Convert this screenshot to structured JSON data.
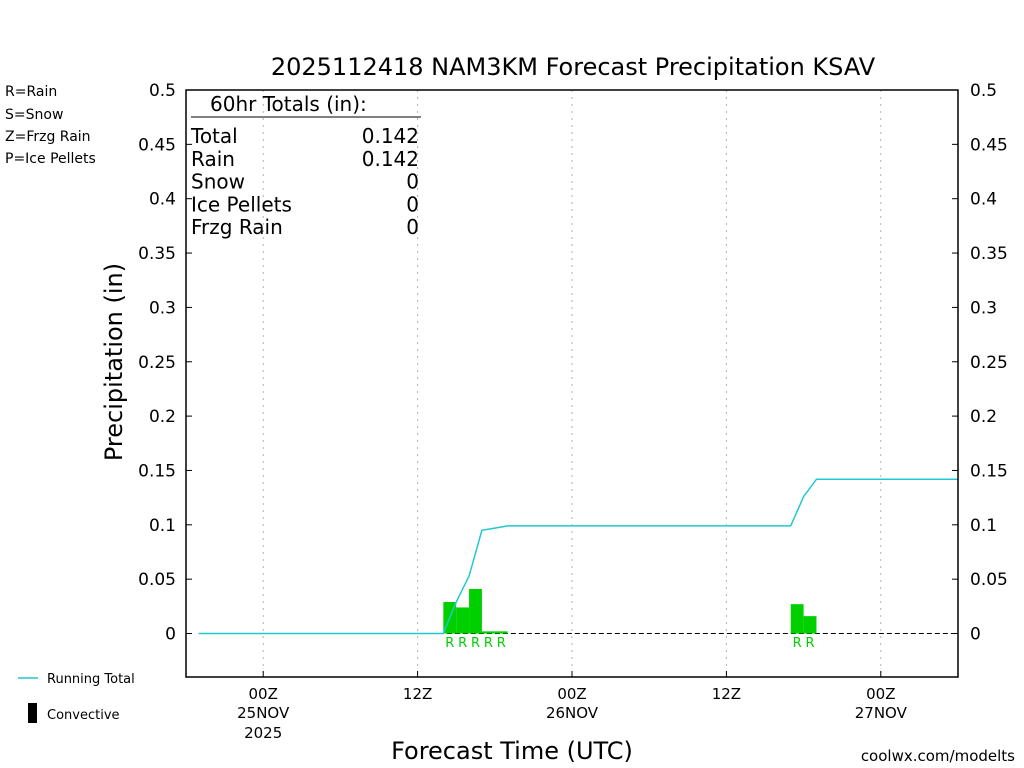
{
  "colors": {
    "rain": "#00d000",
    "snow": "#3d5ce6",
    "frzg_rain": "#f08030",
    "ice_pellets": "#e0208c",
    "running_total": "#20c8d2",
    "convective": "#000000",
    "credit": "#e01818"
  },
  "type_legend": [
    {
      "label": "R=Rain",
      "color_key": "rain"
    },
    {
      "label": "S=Snow",
      "color_key": "snow"
    },
    {
      "label": "Z=Frzg Rain",
      "color_key": "frzg_rain"
    },
    {
      "label": "P=Ice Pellets",
      "color_key": "ice_pellets"
    }
  ],
  "bottom_legend": {
    "running_total": "Running Total",
    "convective": "Convective"
  },
  "totals_box": {
    "header": "60hr Totals (in):",
    "rows": [
      {
        "label": "Total",
        "value": "0.142"
      },
      {
        "label": "Rain",
        "value": "0.142"
      },
      {
        "label": "Snow",
        "value": "0"
      },
      {
        "label": "Ice Pellets",
        "value": "0"
      },
      {
        "label": "Frzg Rain",
        "value": "0"
      }
    ]
  },
  "credit": "coolwx.com/modelts",
  "chart_data": {
    "type": "bar",
    "title": "2025112418 NAM3KM Forecast Precipitation KSAV",
    "xlabel": "Forecast Time (UTC)",
    "ylabel": "Precipitation (in)",
    "ylim": [
      -0.04,
      0.5
    ],
    "yticks": [
      0,
      0.05,
      0.1,
      0.15,
      0.2,
      0.25,
      0.3,
      0.35,
      0.4,
      0.45,
      0.5
    ],
    "ytick_labels": [
      "0",
      "0.05",
      "0.1",
      "0.15",
      "0.2",
      "0.25",
      "0.3",
      "0.35",
      "0.4",
      "0.45",
      "0.5"
    ],
    "xlim": [
      "2025-11-24T18Z",
      "2025-11-27T06Z"
    ],
    "grid_x": true,
    "grid_y": false,
    "xticks": [
      {
        "time": "2025-11-25T00Z",
        "label": "00Z",
        "date": "25NOV",
        "year": "2025"
      },
      {
        "time": "2025-11-25T12Z",
        "label": "12Z",
        "date": "",
        "year": ""
      },
      {
        "time": "2025-11-26T00Z",
        "label": "00Z",
        "date": "26NOV",
        "year": ""
      },
      {
        "time": "2025-11-26T12Z",
        "label": "12Z",
        "date": "",
        "year": ""
      },
      {
        "time": "2025-11-27T00Z",
        "label": "00Z",
        "date": "27NOV",
        "year": ""
      }
    ],
    "bars": [
      {
        "time": "2025-11-25T15Z",
        "value": 0.029,
        "type": "R"
      },
      {
        "time": "2025-11-25T16Z",
        "value": 0.024,
        "type": "R"
      },
      {
        "time": "2025-11-25T17Z",
        "value": 0.041,
        "type": "R"
      },
      {
        "time": "2025-11-25T18Z",
        "value": 0.002,
        "type": "R"
      },
      {
        "time": "2025-11-25T19Z",
        "value": 0.002,
        "type": "R"
      },
      {
        "time": "2025-11-26T18Z",
        "value": 0.027,
        "type": "R"
      },
      {
        "time": "2025-11-26T19Z",
        "value": 0.016,
        "type": "R"
      }
    ],
    "running_total": [
      {
        "time": "2025-11-24T19Z",
        "value": 0
      },
      {
        "time": "2025-11-25T14Z",
        "value": 0
      },
      {
        "time": "2025-11-25T15Z",
        "value": 0.029
      },
      {
        "time": "2025-11-25T16Z",
        "value": 0.053
      },
      {
        "time": "2025-11-25T17Z",
        "value": 0.095
      },
      {
        "time": "2025-11-25T18Z",
        "value": 0.097
      },
      {
        "time": "2025-11-25T19Z",
        "value": 0.099
      },
      {
        "time": "2025-11-26T17Z",
        "value": 0.099
      },
      {
        "time": "2025-11-26T18Z",
        "value": 0.126
      },
      {
        "time": "2025-11-26T19Z",
        "value": 0.142
      },
      {
        "time": "2025-11-27T06Z",
        "value": 0.142
      }
    ]
  }
}
